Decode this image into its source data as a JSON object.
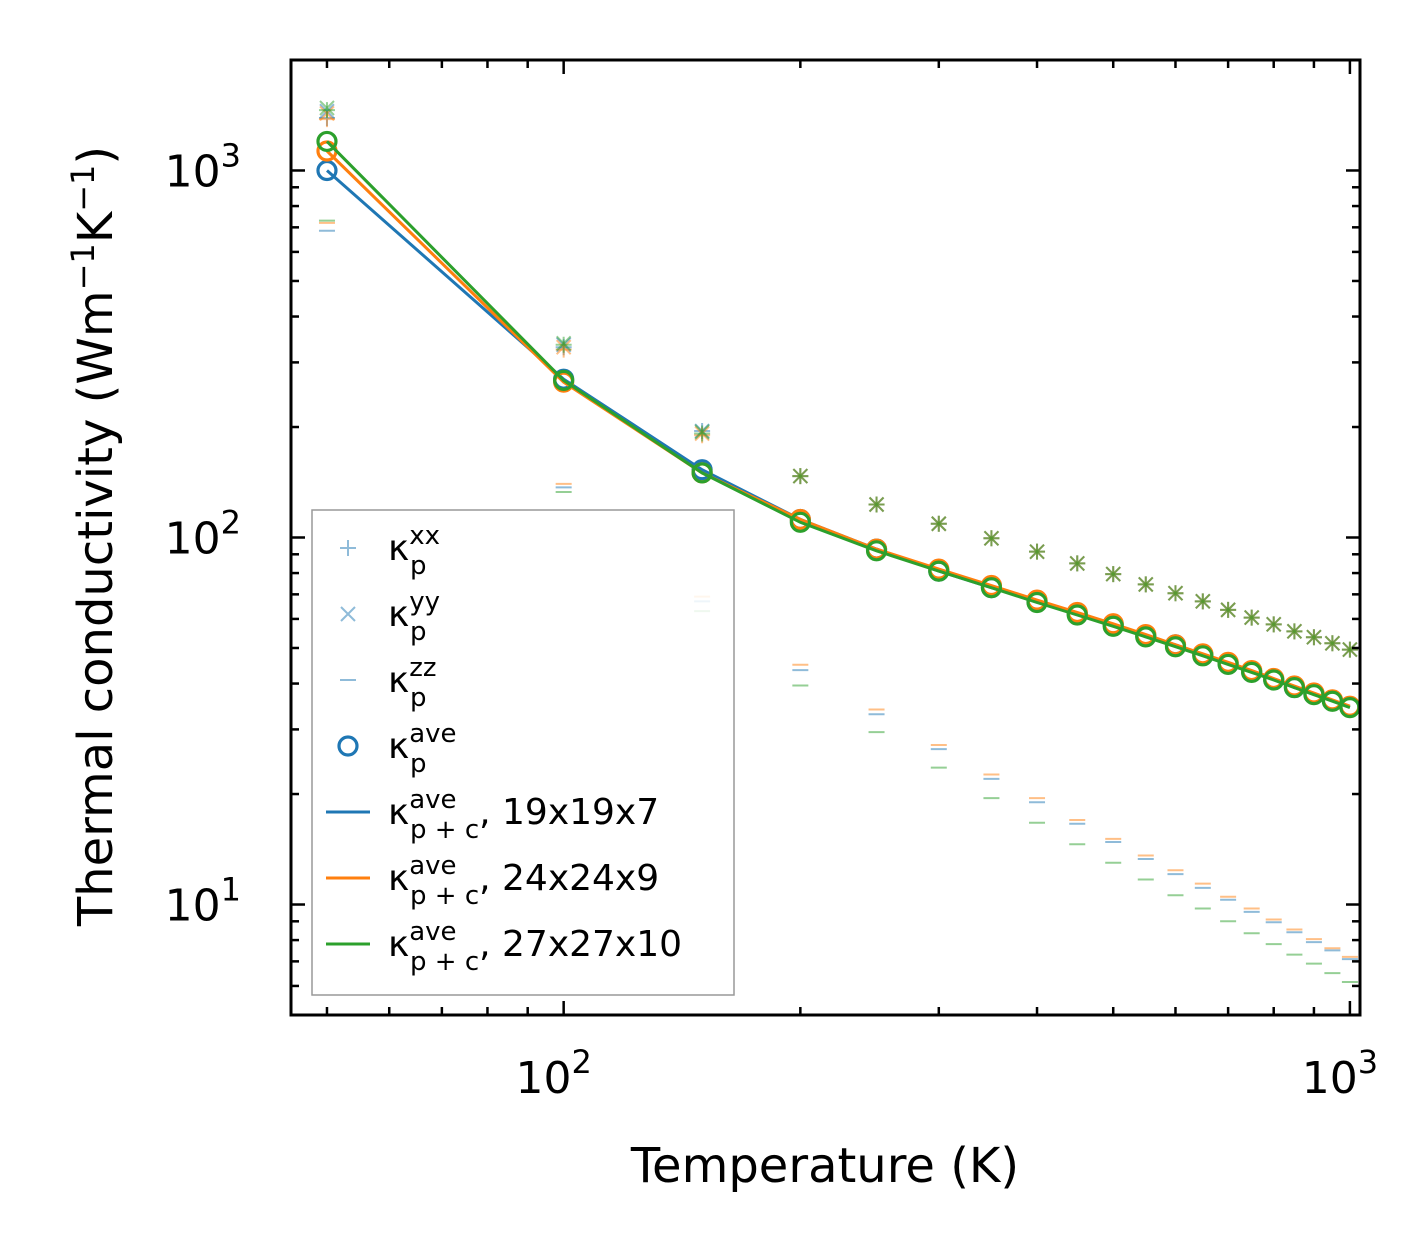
{
  "chart_data": {
    "type": "scatter",
    "xscale": "log",
    "yscale": "log",
    "xlabel": "Temperature (K)",
    "ylabel": "Thermal conductivity (Wm",
    "ylabel_sup1": "−1",
    "ylabel_mid": "K",
    "ylabel_sup2": "−1",
    "ylabel_end": ")",
    "xlim": [
      45,
      1030
    ],
    "ylim": [
      5,
      2000
    ],
    "xticks": [
      {
        "value": 100,
        "base": "10",
        "exp": "2"
      },
      {
        "value": 1000,
        "base": "10",
        "exp": "3"
      }
    ],
    "yticks": [
      {
        "value": 10,
        "base": "10",
        "exp": "1"
      },
      {
        "value": 100,
        "base": "10",
        "exp": "2"
      },
      {
        "value": 1000,
        "base": "10",
        "exp": "3"
      }
    ],
    "colors": {
      "c19": "#1f77b4",
      "c24": "#ff7f0e",
      "c27": "#2ca02c",
      "kxx": "#1f77b4",
      "kyy": "#1f77b4",
      "kzz": "#1f77b4",
      "kave": "#1f77b4"
    },
    "x": [
      50,
      100,
      150,
      200,
      250,
      300,
      350,
      400,
      450,
      500,
      550,
      600,
      650,
      700,
      750,
      800,
      850,
      900,
      950,
      1000
    ],
    "series": [
      {
        "name": "κp+c ave, 19x19x7",
        "key": "c19",
        "color": "#1f77b4",
        "ave": [
          1000,
          270,
          153,
          112,
          93,
          81,
          73,
          67,
          62,
          58,
          54,
          51,
          48,
          45.5,
          43,
          41,
          39,
          37.5,
          36,
          34.5
        ],
        "xx": [
          1390,
          330,
          195,
          147,
          123,
          109,
          99.5,
          91.5,
          85,
          79.5,
          74.5,
          70.5,
          67,
          63.5,
          60.5,
          58,
          55.5,
          53.5,
          51.5,
          49.5
        ],
        "yy": [
          1450,
          335,
          195,
          147,
          123,
          109,
          99.5,
          91.5,
          85,
          79.5,
          74.5,
          70.5,
          67,
          63.5,
          60.5,
          58,
          55.5,
          53.5,
          51.5,
          49.5
        ],
        "zz": [
          685,
          137,
          67,
          43.5,
          33,
          26.5,
          22,
          19,
          16.6,
          14.8,
          13.3,
          12.1,
          11.1,
          10.3,
          9.55,
          8.95,
          8.4,
          7.9,
          7.5,
          7.1
        ]
      },
      {
        "name": "κp+c ave, 24x24x9",
        "key": "c24",
        "color": "#ff7f0e",
        "ave": [
          1130,
          265,
          150,
          112,
          93,
          82,
          74,
          67.5,
          62.5,
          58.2,
          54.4,
          51,
          48.2,
          45.7,
          43.4,
          41.3,
          39.4,
          37.7,
          36.1,
          34.7
        ],
        "xx": [
          1380,
          325,
          190,
          147,
          123,
          109,
          99.5,
          91.5,
          85,
          79.5,
          74.5,
          70.5,
          67,
          63.5,
          60.5,
          58,
          55.5,
          53.5,
          51.5,
          49.5
        ],
        "yy": [
          1430,
          330,
          192,
          147,
          123,
          109,
          99.5,
          91.5,
          85,
          79.5,
          74.5,
          70.5,
          67,
          63.5,
          60.5,
          58,
          55.5,
          53.5,
          51.5,
          49.5
        ],
        "zz": [
          720,
          140,
          69,
          45,
          34,
          27.2,
          22.6,
          19.5,
          17,
          15.1,
          13.6,
          12.4,
          11.4,
          10.5,
          9.75,
          9.1,
          8.55,
          8.05,
          7.6,
          7.2
        ]
      },
      {
        "name": "κp+c ave, 27x27x10",
        "key": "c27",
        "color": "#2ca02c",
        "ave": [
          1200,
          268,
          150,
          110,
          92,
          81,
          73,
          66.5,
          61.5,
          57.3,
          53.6,
          50.4,
          47.6,
          45.1,
          42.9,
          40.9,
          39,
          37.3,
          35.8,
          34.4
        ],
        "xx": [
          1460,
          335,
          192,
          147,
          123,
          109,
          99.5,
          91.5,
          85,
          79.5,
          74.5,
          70.5,
          67,
          63.5,
          60.5,
          58,
          55.5,
          53.5,
          51.5,
          49.5
        ],
        "yy": [
          1480,
          338,
          194,
          147,
          123,
          109,
          99.5,
          91.5,
          85,
          79.5,
          74.5,
          70.5,
          67,
          63.5,
          60.5,
          58,
          55.5,
          53.5,
          51.5,
          49.5
        ],
        "zz": [
          730,
          133,
          63,
          39.5,
          29.5,
          23.6,
          19.5,
          16.7,
          14.6,
          13,
          11.7,
          10.6,
          9.75,
          9,
          8.35,
          7.8,
          7.3,
          6.9,
          6.5,
          6.15
        ]
      }
    ],
    "legend": {
      "placement": "lower-left",
      "entries": [
        {
          "marker": "plus",
          "base": "κ",
          "sub": "p",
          "sup": "xx",
          "suffix": ""
        },
        {
          "marker": "x",
          "base": "κ",
          "sub": "p",
          "sup": "yy",
          "suffix": ""
        },
        {
          "marker": "dash",
          "base": "κ",
          "sub": "p",
          "sup": "zz",
          "suffix": ""
        },
        {
          "marker": "circle",
          "base": "κ",
          "sub": "p",
          "sup": "ave",
          "suffix": ""
        },
        {
          "marker": "line-c19",
          "base": "κ",
          "sub": "p + c",
          "sup": "ave",
          "suffix": ", 19x19x7"
        },
        {
          "marker": "line-c24",
          "base": "κ",
          "sub": "p + c",
          "sup": "ave",
          "suffix": ", 24x24x9"
        },
        {
          "marker": "line-c27",
          "base": "κ",
          "sub": "p + c",
          "sup": "ave",
          "suffix": ", 27x27x10"
        }
      ]
    }
  }
}
